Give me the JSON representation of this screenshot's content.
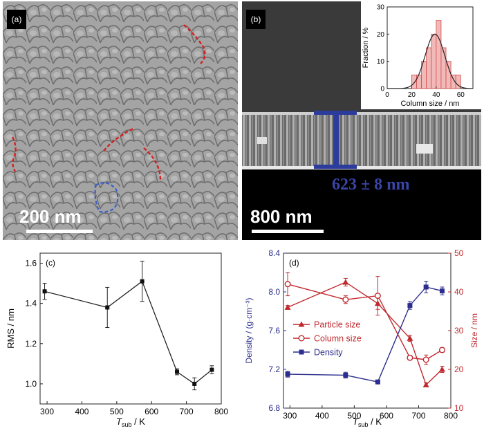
{
  "panel_a": {
    "tag": "(a)",
    "scale_label": "200 nm"
  },
  "panel_b": {
    "tag": "(b)",
    "scale_label": "800 nm",
    "thickness_label": "623 ± 8 nm",
    "inset": {
      "xlabel": "Column size / nm",
      "ylabel": "Fraction / %",
      "x_ticks": [
        "0",
        "20",
        "40",
        "60"
      ],
      "y_ticks": [
        "0",
        "10",
        "20",
        "30"
      ]
    }
  },
  "chart_data": [
    {
      "id": "inset_histogram",
      "type": "bar",
      "xlabel": "Column size / nm",
      "ylabel": "Fraction / %",
      "xlim": [
        0,
        70
      ],
      "ylim": [
        0,
        30
      ],
      "bin_width": 4,
      "bins": [
        20,
        24,
        28,
        32,
        36,
        40,
        44,
        48,
        52,
        56
      ],
      "values": [
        5,
        5,
        10,
        15,
        20,
        25,
        15,
        10,
        5,
        5
      ],
      "fit_peak": 39,
      "fit_height": 20,
      "fit_sigma": 8
    },
    {
      "id": "panel_c",
      "tag": "(c)",
      "type": "line",
      "xlabel": "T",
      "xlabel_sub": "sub",
      "xlabel_unit": " / K",
      "ylabel": "RMS / nm",
      "xlim": [
        280,
        800
      ],
      "ylim": [
        0.9,
        1.65
      ],
      "x_ticks": [
        "300",
        "400",
        "500",
        "600",
        "700",
        "800"
      ],
      "y_ticks": [
        "1.0",
        "1.2",
        "1.4",
        "1.6"
      ],
      "x": [
        293,
        473,
        573,
        673,
        723,
        773
      ],
      "y": [
        1.46,
        1.38,
        1.51,
        1.06,
        1.0,
        1.07
      ],
      "yerr": [
        0.04,
        0.1,
        0.1,
        0.015,
        0.03,
        0.02
      ]
    },
    {
      "id": "panel_d",
      "tag": "(d)",
      "type": "line",
      "xlabel": "T",
      "xlabel_sub": "sub",
      "xlabel_unit": " / K",
      "ylabel_left": "Density / (g·cm⁻³)",
      "ylabel_right": "Size / nm",
      "xlim": [
        280,
        800
      ],
      "ylim_left": [
        6.8,
        8.4
      ],
      "ylim_right": [
        10,
        50
      ],
      "x_ticks": [
        "300",
        "400",
        "500",
        "600",
        "700",
        "800"
      ],
      "y_ticks_left": [
        "6.8",
        "7.2",
        "7.6",
        "8.0",
        "8.4"
      ],
      "y_ticks_right": [
        "10",
        "20",
        "30",
        "40",
        "50"
      ],
      "colors": {
        "left_axis": "#2b2e8c",
        "right_axis": "#c0282d"
      },
      "series": [
        {
          "name": "Particle size",
          "axis": "right",
          "marker": "triangle",
          "color": "#c0282d",
          "x": [
            293,
            473,
            573,
            673,
            723,
            773
          ],
          "y": [
            36,
            42.5,
            37,
            28,
            16,
            20
          ],
          "yerr": [
            0.5,
            1,
            1.5,
            0.8,
            0.5,
            0.8
          ]
        },
        {
          "name": "Column size",
          "axis": "right",
          "marker": "circle-open",
          "color": "#c0282d",
          "x": [
            293,
            473,
            573,
            673,
            723,
            773
          ],
          "y": [
            42,
            38,
            39,
            23,
            22.5,
            25
          ],
          "yerr": [
            3,
            1,
            5,
            0.6,
            1.2,
            0.6
          ]
        },
        {
          "name": "Density",
          "axis": "left",
          "marker": "square",
          "color": "#2b2e8c",
          "x": [
            293,
            473,
            573,
            673,
            723,
            773
          ],
          "y": [
            7.15,
            7.14,
            7.07,
            7.86,
            8.05,
            8.01
          ],
          "yerr": [
            0.03,
            0.03,
            0.01,
            0.04,
            0.06,
            0.04
          ]
        }
      ]
    }
  ]
}
